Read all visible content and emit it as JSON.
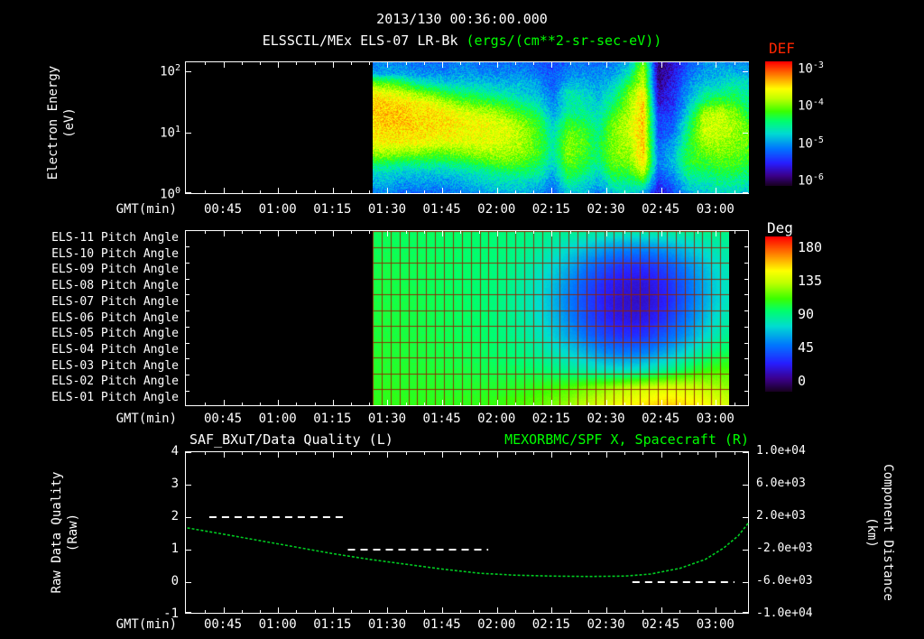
{
  "header": {
    "datetime_title": "2013/130 00:36:00.000",
    "instrument_title": "ELSSCIL/MEx ELS-07 LR-Bk",
    "units_title": "(ergs/(cm**2-sr-sec-eV))"
  },
  "time_axis": {
    "label": "GMT(min)",
    "start_min": 34.6,
    "end_min": 189.2,
    "minor_tick_step_min": 5,
    "major_ticks": [
      {
        "min": 45,
        "label": "00:45"
      },
      {
        "min": 60,
        "label": "01:00"
      },
      {
        "min": 75,
        "label": "01:15"
      },
      {
        "min": 90,
        "label": "01:30"
      },
      {
        "min": 105,
        "label": "01:45"
      },
      {
        "min": 120,
        "label": "02:00"
      },
      {
        "min": 135,
        "label": "02:15"
      },
      {
        "min": 150,
        "label": "02:30"
      },
      {
        "min": 165,
        "label": "02:45"
      },
      {
        "min": 180,
        "label": "03:00"
      }
    ]
  },
  "chart_data": [
    {
      "id": "energy_spectrogram",
      "type": "heatmap",
      "title": "ELSSCIL/MEx ELS-07 LR-Bk",
      "units": "(ergs/(cm**2-sr-sec-eV))",
      "xlabel": "GMT(min)",
      "ylabel_line1": "Electron Energy",
      "ylabel_line2": "(eV)",
      "y_scale": "log",
      "tick_base": "10",
      "y_tick_exps": [
        2,
        1,
        0
      ],
      "y_range_exp": [
        0,
        2.16
      ],
      "colorbar": {
        "title": "DEF",
        "title_color": "#ff2600",
        "tick_exps": [
          -3,
          -4,
          -5,
          -6
        ],
        "range_log10": [
          -6.5,
          -3
        ]
      },
      "data_t_range_min": [
        86,
        189.2
      ],
      "values_log10_def": [
        [
          -5.4,
          -5.4,
          -5.4,
          -5.5,
          -5.5,
          -5.5,
          -5.4,
          -5.5,
          -5.5,
          -5.5,
          -5.5,
          -5.6,
          -5.7,
          -5.5,
          -5.5,
          -5.5,
          -5.4,
          -5.2,
          -4.3,
          -6.3,
          -6.0,
          -5.6,
          -5.4,
          -5.3,
          -5.4,
          -5.4
        ],
        [
          -5.3,
          -5.3,
          -5.3,
          -5.4,
          -5.4,
          -5.4,
          -5.3,
          -5.4,
          -5.4,
          -5.4,
          -5.4,
          -5.5,
          -5.6,
          -5.4,
          -5.4,
          -5.4,
          -5.3,
          -5.0,
          -4.0,
          -6.3,
          -6.0,
          -5.5,
          -5.3,
          -5.2,
          -5.2,
          -5.3
        ],
        [
          -4.3,
          -4.4,
          -4.6,
          -4.9,
          -5.0,
          -5.1,
          -5.1,
          -5.1,
          -5.2,
          -5.2,
          -5.2,
          -5.3,
          -5.6,
          -5.2,
          -5.2,
          -5.3,
          -5.1,
          -4.6,
          -4.0,
          -6.2,
          -5.9,
          -5.4,
          -5.2,
          -5.1,
          -4.9,
          -5.0
        ],
        [
          -3.8,
          -3.9,
          -4.0,
          -4.2,
          -4.4,
          -4.6,
          -4.7,
          -4.8,
          -4.9,
          -5.0,
          -5.1,
          -5.2,
          -5.5,
          -4.9,
          -5.0,
          -5.2,
          -4.9,
          -4.3,
          -3.7,
          -6.1,
          -5.8,
          -5.3,
          -4.9,
          -4.8,
          -4.7,
          -4.9
        ],
        [
          -3.6,
          -3.7,
          -3.7,
          -3.8,
          -3.9,
          -4.1,
          -4.3,
          -4.4,
          -4.5,
          -4.6,
          -4.8,
          -5.0,
          -5.4,
          -4.9,
          -4.9,
          -5.1,
          -4.7,
          -4.2,
          -3.6,
          -6.0,
          -5.8,
          -5.2,
          -4.6,
          -4.4,
          -4.5,
          -4.8
        ],
        [
          -3.6,
          -3.6,
          -3.6,
          -3.7,
          -3.7,
          -3.8,
          -3.9,
          -4.0,
          -4.1,
          -4.3,
          -4.5,
          -4.7,
          -5.3,
          -4.8,
          -4.8,
          -5.0,
          -4.5,
          -4.1,
          -3.6,
          -5.8,
          -5.7,
          -5.0,
          -4.1,
          -4.0,
          -4.2,
          -4.6
        ],
        [
          -3.7,
          -3.6,
          -3.6,
          -3.7,
          -3.7,
          -3.7,
          -3.8,
          -3.8,
          -3.9,
          -4.0,
          -4.2,
          -4.5,
          -5.1,
          -4.5,
          -4.6,
          -4.9,
          -4.3,
          -4.0,
          -3.6,
          -5.7,
          -5.6,
          -4.8,
          -4.0,
          -4.0,
          -4.1,
          -4.4
        ],
        [
          -3.7,
          -3.7,
          -3.7,
          -3.7,
          -3.7,
          -3.8,
          -3.8,
          -3.8,
          -3.9,
          -3.9,
          -4.1,
          -4.4,
          -5.0,
          -4.3,
          -4.4,
          -4.8,
          -4.2,
          -4.0,
          -3.6,
          -5.7,
          -5.5,
          -4.7,
          -4.0,
          -4.0,
          -4.1,
          -4.3
        ],
        [
          -3.8,
          -3.8,
          -3.8,
          -3.8,
          -3.9,
          -3.9,
          -3.9,
          -3.9,
          -3.9,
          -4.0,
          -4.1,
          -4.4,
          -4.9,
          -4.2,
          -4.4,
          -4.7,
          -4.2,
          -4.1,
          -3.6,
          -5.6,
          -5.3,
          -4.6,
          -4.1,
          -4.1,
          -4.2,
          -4.3
        ],
        [
          -4.1,
          -4.1,
          -4.2,
          -4.2,
          -4.3,
          -4.3,
          -4.2,
          -4.1,
          -4.1,
          -4.1,
          -4.2,
          -4.4,
          -4.9,
          -4.2,
          -4.4,
          -4.7,
          -4.2,
          -4.2,
          -3.6,
          -5.5,
          -5.2,
          -4.5,
          -4.3,
          -4.2,
          -4.3,
          -4.4
        ],
        [
          -4.6,
          -4.6,
          -4.7,
          -4.7,
          -4.7,
          -4.7,
          -4.6,
          -4.5,
          -4.4,
          -4.3,
          -4.4,
          -4.6,
          -5.0,
          -4.3,
          -4.5,
          -4.8,
          -4.3,
          -4.3,
          -3.7,
          -5.5,
          -5.2,
          -4.5,
          -4.5,
          -4.4,
          -4.4,
          -4.5
        ],
        [
          -5.0,
          -5.0,
          -5.1,
          -5.1,
          -5.1,
          -5.1,
          -5.0,
          -4.9,
          -4.8,
          -4.7,
          -4.7,
          -4.8,
          -5.2,
          -4.5,
          -4.7,
          -5.0,
          -4.5,
          -4.5,
          -4.0,
          -5.6,
          -5.3,
          -4.7,
          -4.7,
          -4.6,
          -4.6,
          -4.7
        ],
        [
          -5.2,
          -5.2,
          -5.3,
          -5.3,
          -5.3,
          -5.3,
          -5.2,
          -5.1,
          -5.0,
          -5.0,
          -5.0,
          -5.1,
          -5.4,
          -4.8,
          -5.0,
          -5.2,
          -4.8,
          -4.8,
          -4.6,
          -5.8,
          -5.5,
          -5.0,
          -4.9,
          -4.8,
          -4.8,
          -4.9
        ],
        [
          -5.4,
          -5.4,
          -5.5,
          -5.5,
          -5.5,
          -5.5,
          -5.4,
          -5.3,
          -5.2,
          -5.2,
          -5.2,
          -5.3,
          -5.6,
          -5.1,
          -5.2,
          -5.4,
          -5.1,
          -5.0,
          -5.2,
          -6.0,
          -5.7,
          -5.2,
          -5.1,
          -5.0,
          -5.0,
          -5.1
        ]
      ]
    },
    {
      "id": "pitch_angle_heatmap",
      "type": "heatmap",
      "unit": "Deg",
      "xlabel": "GMT(min)",
      "rows": [
        "ELS-11 Pitch Angle",
        "ELS-10 Pitch Angle",
        "ELS-09 Pitch Angle",
        "ELS-08 Pitch Angle",
        "ELS-07 Pitch Angle",
        "ELS-06 Pitch Angle",
        "ELS-05 Pitch Angle",
        "ELS-04 Pitch Angle",
        "ELS-03 Pitch Angle",
        "ELS-02 Pitch Angle",
        "ELS-01 Pitch Angle"
      ],
      "colorbar": {
        "title": "Deg",
        "ticks": [
          "180",
          "135",
          "90",
          "45",
          "0"
        ],
        "range": [
          0,
          180
        ]
      },
      "data_t_range_min": [
        86,
        183.7
      ],
      "values_deg": [
        [
          96,
          96,
          95,
          95,
          95,
          94,
          94,
          93,
          92,
          91,
          90,
          89,
          88,
          87,
          86,
          85,
          84,
          84,
          85,
          86,
          87,
          88,
          89,
          90
        ],
        [
          97,
          97,
          96,
          96,
          95,
          95,
          94,
          93,
          92,
          90,
          88,
          85,
          80,
          74,
          68,
          62,
          58,
          57,
          58,
          62,
          68,
          75,
          81,
          85
        ],
        [
          98,
          98,
          97,
          97,
          96,
          95,
          94,
          93,
          91,
          89,
          85,
          80,
          72,
          62,
          52,
          44,
          38,
          36,
          38,
          44,
          54,
          65,
          75,
          82
        ],
        [
          99,
          99,
          98,
          97,
          96,
          95,
          94,
          93,
          91,
          88,
          83,
          76,
          66,
          54,
          43,
          34,
          28,
          26,
          28,
          35,
          46,
          60,
          72,
          80
        ],
        [
          100,
          99,
          99,
          98,
          97,
          96,
          95,
          93,
          91,
          87,
          82,
          74,
          63,
          51,
          40,
          31,
          25,
          23,
          26,
          33,
          45,
          59,
          71,
          80
        ],
        [
          100,
          100,
          99,
          98,
          97,
          96,
          95,
          94,
          91,
          88,
          83,
          75,
          65,
          53,
          42,
          34,
          28,
          27,
          30,
          38,
          50,
          63,
          75,
          83
        ],
        [
          101,
          100,
          100,
          99,
          98,
          97,
          96,
          95,
          92,
          89,
          85,
          79,
          70,
          60,
          50,
          42,
          37,
          36,
          40,
          48,
          58,
          70,
          80,
          88
        ],
        [
          102,
          101,
          101,
          100,
          99,
          98,
          97,
          96,
          94,
          92,
          89,
          85,
          79,
          72,
          65,
          58,
          54,
          54,
          58,
          65,
          74,
          84,
          92,
          98
        ],
        [
          103,
          102,
          102,
          101,
          101,
          100,
          99,
          98,
          97,
          96,
          95,
          93,
          90,
          87,
          83,
          80,
          78,
          79,
          83,
          89,
          96,
          103,
          108,
          110
        ],
        [
          104,
          104,
          103,
          103,
          103,
          102,
          102,
          102,
          102,
          103,
          104,
          106,
          108,
          111,
          115,
          119,
          123,
          127,
          130,
          132,
          131,
          128,
          124,
          120
        ],
        [
          105,
          105,
          105,
          105,
          105,
          105,
          105,
          106,
          107,
          109,
          111,
          114,
          118,
          123,
          128,
          133,
          138,
          142,
          146,
          148,
          146,
          142,
          137,
          131
        ]
      ]
    },
    {
      "id": "quality_and_distance",
      "type": "line",
      "title_left": "SAF_BXuT/Data Quality (L)",
      "title_right": "MEXORBMC/SPF X, Spacecraft (R)",
      "xlabel": "GMT(min)",
      "left_axis": {
        "label_line1": "Raw Data Quality",
        "label_line2": "(Raw)",
        "ticks": [
          "4",
          "3",
          "2",
          "1",
          "0",
          "-1"
        ],
        "range": [
          -1,
          4
        ]
      },
      "right_axis": {
        "label_line1": "Component Distance",
        "label_line2": "(km)",
        "ticks": [
          "1.0e+04",
          "6.0e+03",
          "2.0e+03",
          "-2.0e+03",
          "-6.0e+03",
          "-1.0e+04"
        ],
        "range": [
          -10000,
          10000
        ]
      },
      "series": [
        {
          "name": "SAF_BXuT/Data Quality",
          "axis": "left",
          "style": "dashed",
          "color": "#ffffff",
          "segments": [
            {
              "t": [
                41,
                79
              ],
              "value": 2
            },
            {
              "t": [
                79,
                117.5
              ],
              "value": 1
            },
            {
              "t": [
                157,
                185
              ],
              "value": 0
            }
          ]
        },
        {
          "name": "MEXORBMC/SPF X, Spacecraft",
          "axis": "right",
          "style": "dotted",
          "color": "#00cc22",
          "points_min_km": [
            [
              35,
              680
            ],
            [
              45,
              -100
            ],
            [
              55,
              -900
            ],
            [
              65,
              -1700
            ],
            [
              75,
              -2500
            ],
            [
              85,
              -3200
            ],
            [
              95,
              -3800
            ],
            [
              105,
              -4400
            ],
            [
              115,
              -4900
            ],
            [
              125,
              -5150
            ],
            [
              135,
              -5250
            ],
            [
              145,
              -5300
            ],
            [
              155,
              -5250
            ],
            [
              162,
              -5000
            ],
            [
              170,
              -4300
            ],
            [
              177,
              -3200
            ],
            [
              182,
              -1800
            ],
            [
              186,
              -300
            ],
            [
              189,
              1400
            ]
          ]
        }
      ]
    }
  ]
}
